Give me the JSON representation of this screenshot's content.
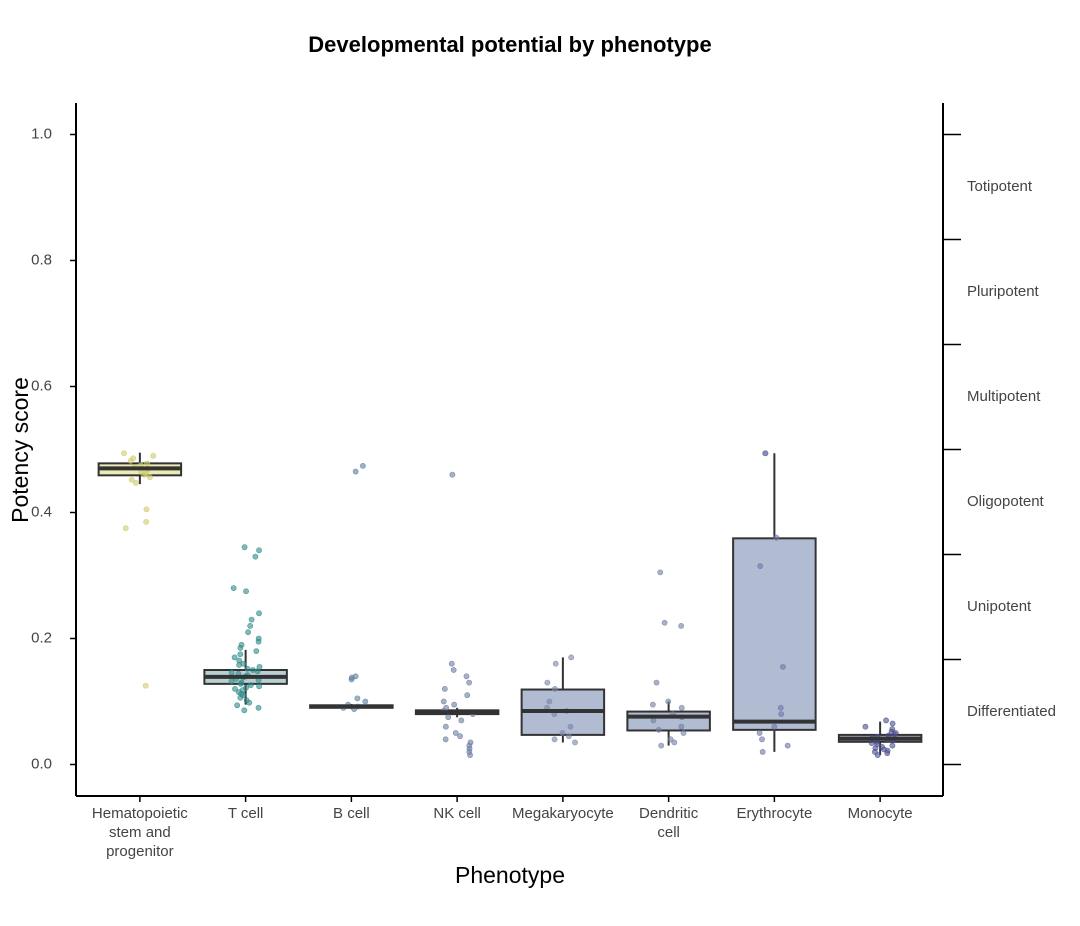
{
  "chart_data": {
    "type": "box",
    "title": "Developmental potential by phenotype",
    "x_label": "Phenotype",
    "y_label": "Potency score",
    "ylim": [
      -0.05,
      1.05
    ],
    "yticks": [
      {
        "value": 0,
        "label": "0.0"
      },
      0.2,
      0.4,
      0.6,
      0.8,
      {
        "value": 1,
        "label": "1.0"
      }
    ],
    "y2lim": [
      -0.05,
      1.05
    ],
    "y2ticks": [
      0,
      0.1667,
      0.3333,
      0.5,
      0.6667,
      0.8333,
      1
    ],
    "y2_levels": [
      "Differentiated",
      "Unipotent",
      "Oligopotent",
      "Multipotent",
      "Pluripotent",
      "Totipotent"
    ],
    "categories": [
      "Hematopoietic\nstem and\nprogenitor",
      "T cell",
      "B cell",
      "NK cell",
      "Megakaryocyte",
      "Dendritic\ncell",
      "Erythrocyte",
      "Monocyte"
    ],
    "boxes": [
      {
        "fill": "#ecebb6",
        "point_color": "#cfcb6c",
        "whisker_low": 0.445,
        "q1": 0.459,
        "median": 0.47,
        "q3": 0.478,
        "whisker_high": 0.495,
        "points": [
          0.494,
          0.49,
          0.486,
          0.482,
          0.478,
          0.475,
          0.472,
          0.47,
          0.468,
          0.465,
          0.462,
          0.46,
          0.456,
          0.452,
          0.447,
          0.405,
          0.385,
          0.375,
          0.125
        ]
      },
      {
        "fill": "#b9cfd4",
        "point_color": "#2f8a88",
        "whisker_low": 0.095,
        "q1": 0.128,
        "median": 0.139,
        "q3": 0.15,
        "whisker_high": 0.182,
        "points": [
          0.345,
          0.34,
          0.33,
          0.28,
          0.275,
          0.24,
          0.23,
          0.22,
          0.21,
          0.2,
          0.195,
          0.19,
          0.185,
          0.18,
          0.175,
          0.17,
          0.165,
          0.16,
          0.158,
          0.155,
          0.152,
          0.15,
          0.148,
          0.146,
          0.144,
          0.142,
          0.14,
          0.138,
          0.136,
          0.134,
          0.132,
          0.13,
          0.128,
          0.126,
          0.124,
          0.122,
          0.12,
          0.118,
          0.115,
          0.112,
          0.11,
          0.106,
          0.102,
          0.098,
          0.094,
          0.09,
          0.086
        ]
      },
      {
        "fill": "#b1bcd2",
        "point_color": "#5a7fa0",
        "whisker_low": 0.088,
        "q1": 0.09,
        "median": 0.092,
        "q3": 0.094,
        "whisker_high": 0.096,
        "points": [
          0.474,
          0.465,
          0.14,
          0.138,
          0.135,
          0.105,
          0.1,
          0.095,
          0.092,
          0.09,
          0.088
        ]
      },
      {
        "fill": "#b1bcd2",
        "point_color": "#6a7ba2",
        "whisker_low": 0.075,
        "q1": 0.08,
        "median": 0.083,
        "q3": 0.086,
        "whisker_high": 0.09,
        "points": [
          0.46,
          0.16,
          0.15,
          0.14,
          0.13,
          0.12,
          0.11,
          0.1,
          0.095,
          0.09,
          0.085,
          0.08,
          0.075,
          0.07,
          0.06,
          0.05,
          0.045,
          0.04,
          0.035,
          0.03,
          0.025,
          0.02,
          0.015
        ]
      },
      {
        "fill": "#b1bcd2",
        "point_color": "#7a85a8",
        "whisker_low": 0.035,
        "q1": 0.047,
        "median": 0.085,
        "q3": 0.119,
        "whisker_high": 0.17,
        "points": [
          0.17,
          0.16,
          0.13,
          0.12,
          0.1,
          0.09,
          0.085,
          0.08,
          0.06,
          0.05,
          0.045,
          0.04,
          0.035
        ]
      },
      {
        "fill": "#b1bcd2",
        "point_color": "#717fa3",
        "whisker_low": 0.03,
        "q1": 0.054,
        "median": 0.076,
        "q3": 0.084,
        "whisker_high": 0.1,
        "points": [
          0.305,
          0.225,
          0.22,
          0.13,
          0.1,
          0.095,
          0.09,
          0.08,
          0.075,
          0.07,
          0.06,
          0.055,
          0.05,
          0.04,
          0.035,
          0.03
        ]
      },
      {
        "fill": "#b1bcd2",
        "point_color": "#6c75a8",
        "whisker_low": 0.02,
        "q1": 0.055,
        "median": 0.068,
        "q3": 0.359,
        "whisker_high": 0.494,
        "points": [
          0.494,
          0.494,
          0.36,
          0.315,
          0.155,
          0.09,
          0.08,
          0.06,
          0.05,
          0.04,
          0.03,
          0.02
        ]
      },
      {
        "fill": "#b1bcd2",
        "point_color": "#4b4f8f",
        "whisker_low": 0.015,
        "q1": 0.036,
        "median": 0.041,
        "q3": 0.047,
        "whisker_high": 0.068,
        "points": [
          0.07,
          0.065,
          0.06,
          0.056,
          0.052,
          0.05,
          0.048,
          0.046,
          0.044,
          0.042,
          0.04,
          0.038,
          0.036,
          0.034,
          0.032,
          0.03,
          0.028,
          0.026,
          0.024,
          0.022,
          0.02,
          0.018,
          0.015
        ]
      }
    ]
  }
}
